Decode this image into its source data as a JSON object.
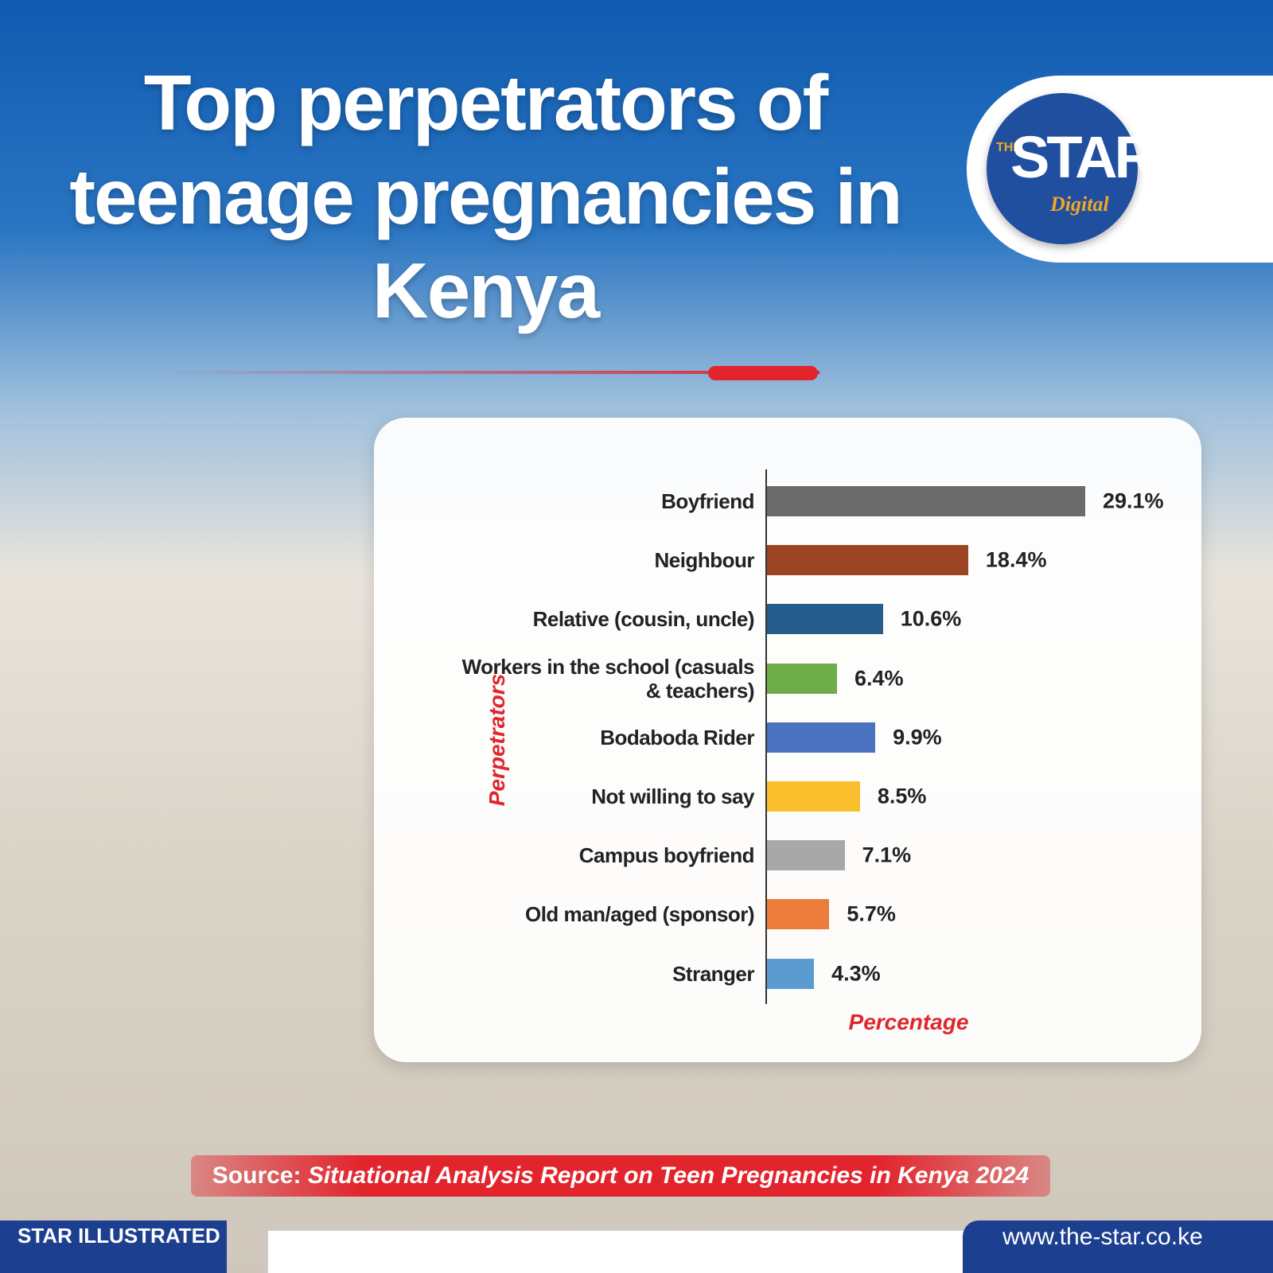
{
  "header": {
    "title": "Top perpetrators of teenage pregnancies in Kenya",
    "logo_small": "THE",
    "logo_main": "STAR",
    "logo_sub": "Digital"
  },
  "chart_data": {
    "type": "bar",
    "orientation": "horizontal",
    "categories": [
      "Boyfriend",
      "Neighbour",
      "Relative (cousin, uncle)",
      "Workers in the school (casuals & teachers)",
      "Bodaboda Rider",
      "Not willing to say",
      "Campus boyfriend",
      "Old man/aged (sponsor)",
      "Stranger"
    ],
    "values": [
      29.1,
      18.4,
      10.6,
      6.4,
      9.9,
      8.5,
      7.1,
      5.7,
      4.3
    ],
    "value_labels": [
      "29.1%",
      "18.4%",
      "10.6%",
      "6.4%",
      "9.9%",
      "8.5%",
      "7.1%",
      "5.7%",
      "4.3%"
    ],
    "colors": [
      "#6b6b6b",
      "#9c4424",
      "#255e8c",
      "#6fad4a",
      "#4a72c0",
      "#fbbf2e",
      "#a8a8a8",
      "#ec7c3a",
      "#5b9bd0"
    ],
    "y_label": "Perpetrators",
    "x_label": "Percentage"
  },
  "footer": {
    "source_label": "Source:",
    "source_text": "Situational Analysis Report on Teen Pregnancies in Kenya 2024",
    "brand": "STAR ILLUSTRATED",
    "url": "www.the-star.co.ke"
  }
}
